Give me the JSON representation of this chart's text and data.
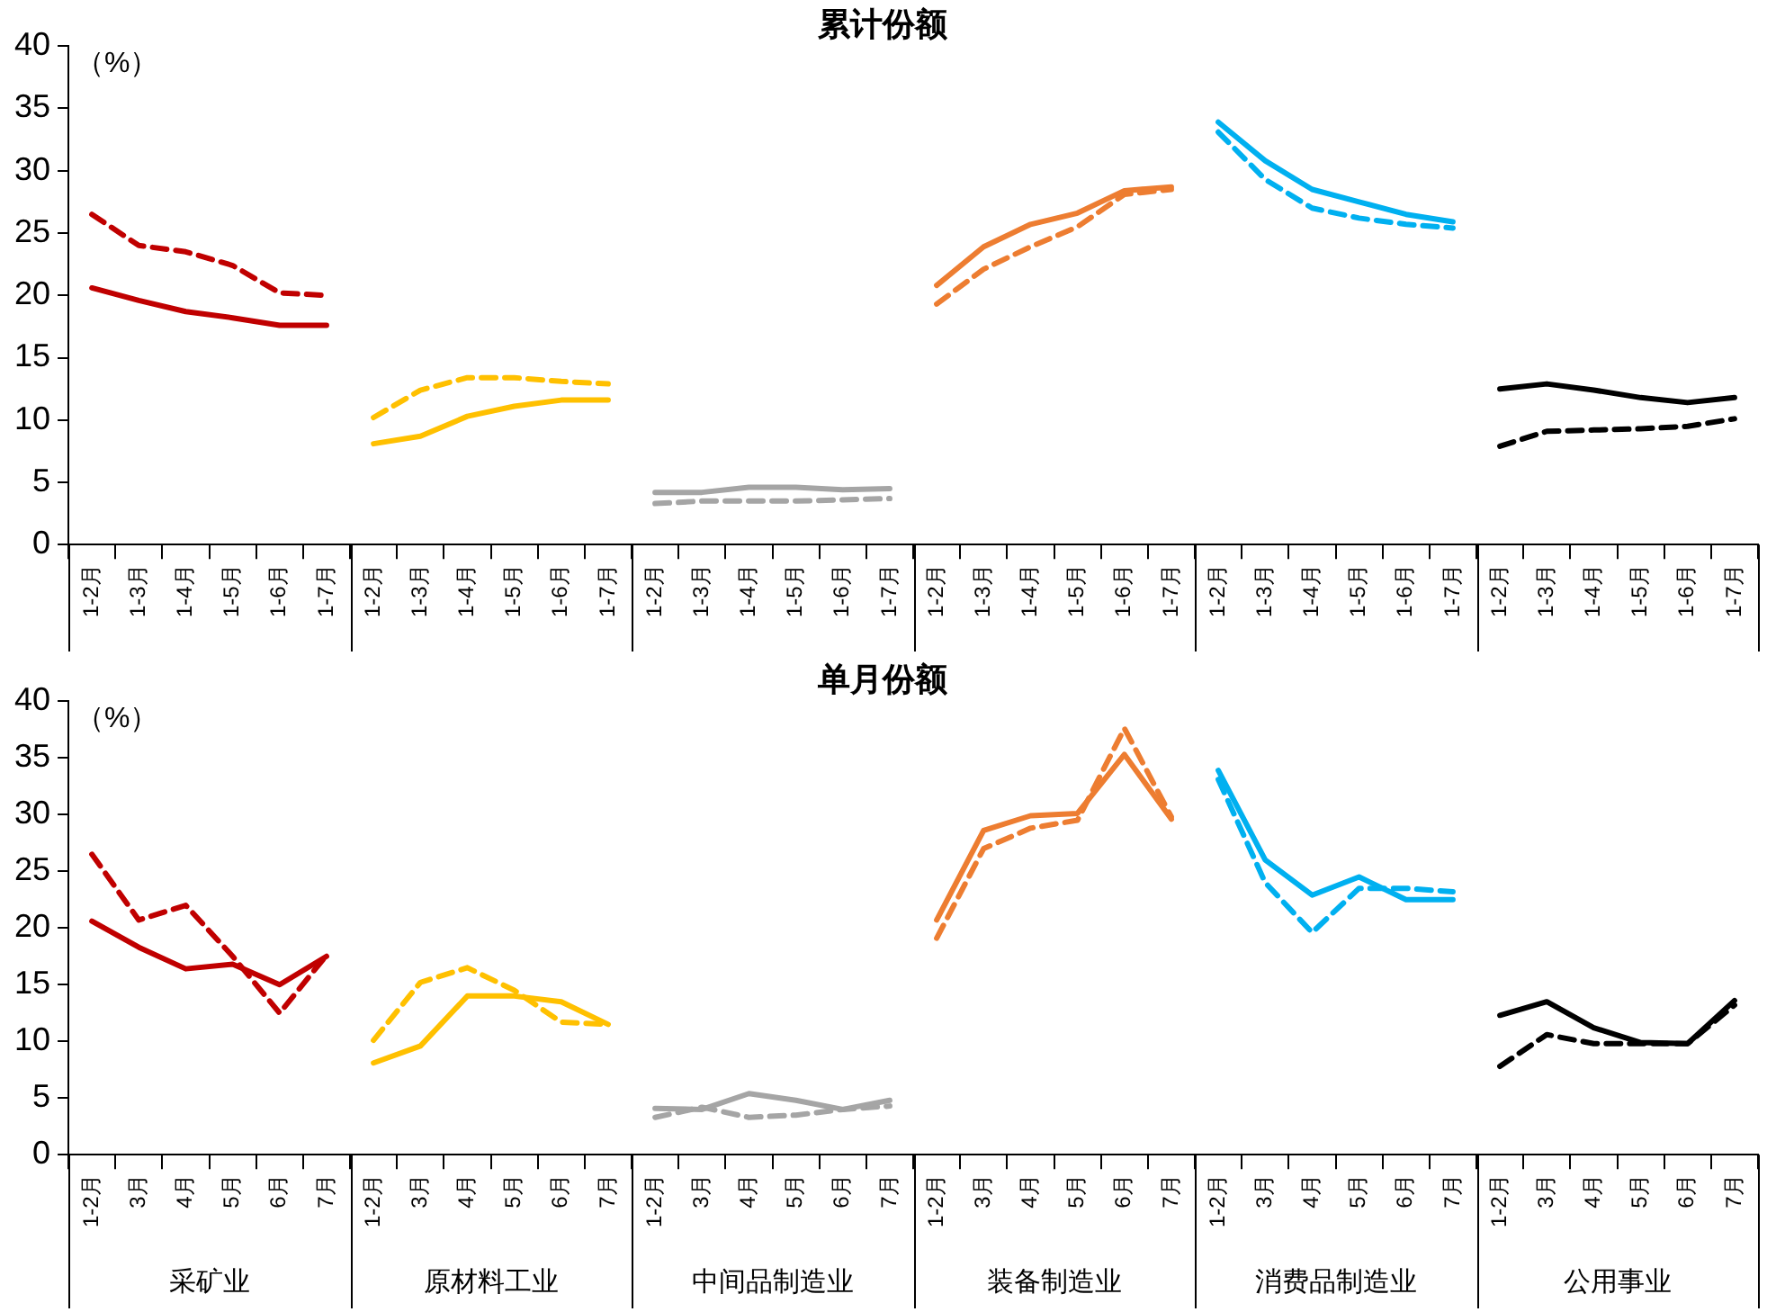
{
  "chart_data": [
    {
      "type": "line",
      "title": "累计份额",
      "ylabel": "（%）",
      "ylim": [
        0,
        40
      ],
      "yticks": [
        0,
        5,
        10,
        15,
        20,
        25,
        30,
        35,
        40
      ],
      "grid": false,
      "legend": false,
      "marker": "none",
      "categories": [
        "1-2月",
        "1-3月",
        "1-4月",
        "1-5月",
        "1-6月",
        "1-7月",
        "1-2月",
        "1-3月",
        "1-4月",
        "1-5月",
        "1-6月",
        "1-7月",
        "1-2月",
        "1-3月",
        "1-4月",
        "1-5月",
        "1-6月",
        "1-7月",
        "1-2月",
        "1-3月",
        "1-4月",
        "1-5月",
        "1-6月",
        "1-7月",
        "1-2月",
        "1-3月",
        "1-4月",
        "1-5月",
        "1-6月",
        "1-7月",
        "1-2月",
        "1-3月",
        "1-4月",
        "1-5月",
        "1-6月",
        "1-7月"
      ],
      "series": [
        {
          "color": "#c00000",
          "line_style": "solid",
          "values": [
            20.6,
            19.6,
            18.7,
            18.2,
            17.6,
            17.6,
            null,
            null,
            null,
            null,
            null,
            null,
            null,
            null,
            null,
            null,
            null,
            null,
            null,
            null,
            null,
            null,
            null,
            null,
            null,
            null,
            null,
            null,
            null,
            null,
            null,
            null,
            null,
            null,
            null,
            null
          ]
        },
        {
          "color": "#c00000",
          "line_style": "dashed",
          "values": [
            26.5,
            24.0,
            23.5,
            22.4,
            20.2,
            20.0,
            null,
            null,
            null,
            null,
            null,
            null,
            null,
            null,
            null,
            null,
            null,
            null,
            null,
            null,
            null,
            null,
            null,
            null,
            null,
            null,
            null,
            null,
            null,
            null,
            null,
            null,
            null,
            null,
            null,
            null
          ]
        },
        {
          "color": "#ffc000",
          "line_style": "solid",
          "values": [
            null,
            null,
            null,
            null,
            null,
            null,
            8.1,
            8.7,
            10.3,
            11.1,
            11.6,
            11.6,
            null,
            null,
            null,
            null,
            null,
            null,
            null,
            null,
            null,
            null,
            null,
            null,
            null,
            null,
            null,
            null,
            null,
            null,
            null,
            null,
            null,
            null,
            null,
            null
          ]
        },
        {
          "color": "#ffc000",
          "line_style": "dashed",
          "values": [
            null,
            null,
            null,
            null,
            null,
            null,
            10.2,
            12.4,
            13.4,
            13.4,
            13.1,
            12.9,
            null,
            null,
            null,
            null,
            null,
            null,
            null,
            null,
            null,
            null,
            null,
            null,
            null,
            null,
            null,
            null,
            null,
            null,
            null,
            null,
            null,
            null,
            null,
            null
          ]
        },
        {
          "color": "#a5a5a5",
          "line_style": "solid",
          "values": [
            null,
            null,
            null,
            null,
            null,
            null,
            null,
            null,
            null,
            null,
            null,
            null,
            4.2,
            4.2,
            4.6,
            4.6,
            4.4,
            4.5,
            null,
            null,
            null,
            null,
            null,
            null,
            null,
            null,
            null,
            null,
            null,
            null,
            null,
            null,
            null,
            null,
            null,
            null
          ]
        },
        {
          "color": "#a5a5a5",
          "line_style": "dashed",
          "values": [
            null,
            null,
            null,
            null,
            null,
            null,
            null,
            null,
            null,
            null,
            null,
            null,
            3.3,
            3.5,
            3.5,
            3.5,
            3.6,
            3.7,
            null,
            null,
            null,
            null,
            null,
            null,
            null,
            null,
            null,
            null,
            null,
            null,
            null,
            null,
            null,
            null,
            null,
            null
          ]
        },
        {
          "color": "#ed7d31",
          "line_style": "solid",
          "values": [
            null,
            null,
            null,
            null,
            null,
            null,
            null,
            null,
            null,
            null,
            null,
            null,
            null,
            null,
            null,
            null,
            null,
            null,
            20.8,
            23.9,
            25.7,
            26.6,
            28.4,
            28.7,
            null,
            null,
            null,
            null,
            null,
            null,
            null,
            null,
            null,
            null,
            null,
            null
          ]
        },
        {
          "color": "#ed7d31",
          "line_style": "dashed",
          "values": [
            null,
            null,
            null,
            null,
            null,
            null,
            null,
            null,
            null,
            null,
            null,
            null,
            null,
            null,
            null,
            null,
            null,
            null,
            19.3,
            22.1,
            23.9,
            25.5,
            28.1,
            28.5,
            null,
            null,
            null,
            null,
            null,
            null,
            null,
            null,
            null,
            null,
            null,
            null
          ]
        },
        {
          "color": "#00b0f0",
          "line_style": "solid",
          "values": [
            null,
            null,
            null,
            null,
            null,
            null,
            null,
            null,
            null,
            null,
            null,
            null,
            null,
            null,
            null,
            null,
            null,
            null,
            null,
            null,
            null,
            null,
            null,
            null,
            33.9,
            30.8,
            28.5,
            27.5,
            26.5,
            25.9,
            null,
            null,
            null,
            null,
            null,
            null
          ]
        },
        {
          "color": "#00b0f0",
          "line_style": "dashed",
          "values": [
            null,
            null,
            null,
            null,
            null,
            null,
            null,
            null,
            null,
            null,
            null,
            null,
            null,
            null,
            null,
            null,
            null,
            null,
            null,
            null,
            null,
            null,
            null,
            null,
            33.1,
            29.3,
            27.0,
            26.2,
            25.7,
            25.4,
            null,
            null,
            null,
            null,
            null,
            null
          ]
        },
        {
          "color": "#000000",
          "line_style": "solid",
          "values": [
            null,
            null,
            null,
            null,
            null,
            null,
            null,
            null,
            null,
            null,
            null,
            null,
            null,
            null,
            null,
            null,
            null,
            null,
            null,
            null,
            null,
            null,
            null,
            null,
            null,
            null,
            null,
            null,
            null,
            null,
            12.5,
            12.9,
            12.4,
            11.8,
            11.4,
            11.8
          ]
        },
        {
          "color": "#000000",
          "line_style": "dashed",
          "values": [
            null,
            null,
            null,
            null,
            null,
            null,
            null,
            null,
            null,
            null,
            null,
            null,
            null,
            null,
            null,
            null,
            null,
            null,
            null,
            null,
            null,
            null,
            null,
            null,
            null,
            null,
            null,
            null,
            null,
            null,
            7.9,
            9.1,
            9.2,
            9.3,
            9.5,
            10.1
          ]
        }
      ]
    },
    {
      "type": "line",
      "title": "单月份额",
      "ylabel": "（%）",
      "ylim": [
        0,
        40
      ],
      "yticks": [
        0,
        5,
        10,
        15,
        20,
        25,
        30,
        35,
        40
      ],
      "grid": false,
      "legend": false,
      "marker": "none",
      "categories": [
        "1-2月",
        "3月",
        "4月",
        "5月",
        "6月",
        "7月",
        "1-2月",
        "3月",
        "4月",
        "5月",
        "6月",
        "7月",
        "1-2月",
        "3月",
        "4月",
        "5月",
        "6月",
        "7月",
        "1-2月",
        "3月",
        "4月",
        "5月",
        "6月",
        "7月",
        "1-2月",
        "3月",
        "4月",
        "5月",
        "6月",
        "7月",
        "1-2月",
        "3月",
        "4月",
        "5月",
        "6月",
        "7月"
      ],
      "annotations": [
        "采矿业",
        "原材料工业",
        "中间品制造业",
        "装备制造业",
        "消费品制造业",
        "公用事业"
      ],
      "series": [
        {
          "color": "#c00000",
          "line_style": "solid",
          "values": [
            20.6,
            18.3,
            16.4,
            16.8,
            15.0,
            17.5,
            null,
            null,
            null,
            null,
            null,
            null,
            null,
            null,
            null,
            null,
            null,
            null,
            null,
            null,
            null,
            null,
            null,
            null,
            null,
            null,
            null,
            null,
            null,
            null,
            null,
            null,
            null,
            null,
            null,
            null
          ]
        },
        {
          "color": "#c00000",
          "line_style": "dashed",
          "values": [
            26.5,
            20.7,
            22.0,
            17.5,
            12.5,
            17.6,
            null,
            null,
            null,
            null,
            null,
            null,
            null,
            null,
            null,
            null,
            null,
            null,
            null,
            null,
            null,
            null,
            null,
            null,
            null,
            null,
            null,
            null,
            null,
            null,
            null,
            null,
            null,
            null,
            null,
            null
          ]
        },
        {
          "color": "#ffc000",
          "line_style": "solid",
          "values": [
            null,
            null,
            null,
            null,
            null,
            null,
            8.1,
            9.6,
            14.0,
            14.0,
            13.5,
            11.5,
            null,
            null,
            null,
            null,
            null,
            null,
            null,
            null,
            null,
            null,
            null,
            null,
            null,
            null,
            null,
            null,
            null,
            null,
            null,
            null,
            null,
            null,
            null,
            null
          ]
        },
        {
          "color": "#ffc000",
          "line_style": "dashed",
          "values": [
            null,
            null,
            null,
            null,
            null,
            null,
            10.1,
            15.2,
            16.5,
            14.5,
            11.7,
            11.5,
            null,
            null,
            null,
            null,
            null,
            null,
            null,
            null,
            null,
            null,
            null,
            null,
            null,
            null,
            null,
            null,
            null,
            null,
            null,
            null,
            null,
            null,
            null,
            null
          ]
        },
        {
          "color": "#a5a5a5",
          "line_style": "solid",
          "values": [
            null,
            null,
            null,
            null,
            null,
            null,
            null,
            null,
            null,
            null,
            null,
            null,
            4.1,
            4.0,
            5.4,
            4.8,
            4.0,
            4.8,
            null,
            null,
            null,
            null,
            null,
            null,
            null,
            null,
            null,
            null,
            null,
            null,
            null,
            null,
            null,
            null,
            null,
            null
          ]
        },
        {
          "color": "#a5a5a5",
          "line_style": "dashed",
          "values": [
            null,
            null,
            null,
            null,
            null,
            null,
            null,
            null,
            null,
            null,
            null,
            null,
            3.3,
            4.2,
            3.3,
            3.5,
            4.0,
            4.3,
            null,
            null,
            null,
            null,
            null,
            null,
            null,
            null,
            null,
            null,
            null,
            null,
            null,
            null,
            null,
            null,
            null,
            null
          ]
        },
        {
          "color": "#ed7d31",
          "line_style": "solid",
          "values": [
            null,
            null,
            null,
            null,
            null,
            null,
            null,
            null,
            null,
            null,
            null,
            null,
            null,
            null,
            null,
            null,
            null,
            null,
            20.7,
            28.6,
            29.9,
            30.1,
            35.3,
            29.6,
            null,
            null,
            null,
            null,
            null,
            null,
            null,
            null,
            null,
            null,
            null,
            null
          ]
        },
        {
          "color": "#ed7d31",
          "line_style": "dashed",
          "values": [
            null,
            null,
            null,
            null,
            null,
            null,
            null,
            null,
            null,
            null,
            null,
            null,
            null,
            null,
            null,
            null,
            null,
            null,
            19.1,
            27.0,
            28.8,
            29.5,
            37.6,
            29.8,
            null,
            null,
            null,
            null,
            null,
            null,
            null,
            null,
            null,
            null,
            null,
            null
          ]
        },
        {
          "color": "#00b0f0",
          "line_style": "solid",
          "values": [
            null,
            null,
            null,
            null,
            null,
            null,
            null,
            null,
            null,
            null,
            null,
            null,
            null,
            null,
            null,
            null,
            null,
            null,
            null,
            null,
            null,
            null,
            null,
            null,
            33.9,
            26.0,
            22.9,
            24.5,
            22.5,
            22.5,
            null,
            null,
            null,
            null,
            null,
            null
          ]
        },
        {
          "color": "#00b0f0",
          "line_style": "dashed",
          "values": [
            null,
            null,
            null,
            null,
            null,
            null,
            null,
            null,
            null,
            null,
            null,
            null,
            null,
            null,
            null,
            null,
            null,
            null,
            null,
            null,
            null,
            null,
            null,
            null,
            33.1,
            24.0,
            19.6,
            23.5,
            23.5,
            23.2,
            null,
            null,
            null,
            null,
            null,
            null
          ]
        },
        {
          "color": "#000000",
          "line_style": "solid",
          "values": [
            null,
            null,
            null,
            null,
            null,
            null,
            null,
            null,
            null,
            null,
            null,
            null,
            null,
            null,
            null,
            null,
            null,
            null,
            null,
            null,
            null,
            null,
            null,
            null,
            null,
            null,
            null,
            null,
            null,
            null,
            12.3,
            13.5,
            11.2,
            9.9,
            9.8,
            13.6
          ]
        },
        {
          "color": "#000000",
          "line_style": "dashed",
          "values": [
            null,
            null,
            null,
            null,
            null,
            null,
            null,
            null,
            null,
            null,
            null,
            null,
            null,
            null,
            null,
            null,
            null,
            null,
            null,
            null,
            null,
            null,
            null,
            null,
            null,
            null,
            null,
            null,
            null,
            null,
            7.8,
            10.6,
            9.8,
            9.8,
            9.8,
            13.2
          ]
        }
      ]
    }
  ]
}
